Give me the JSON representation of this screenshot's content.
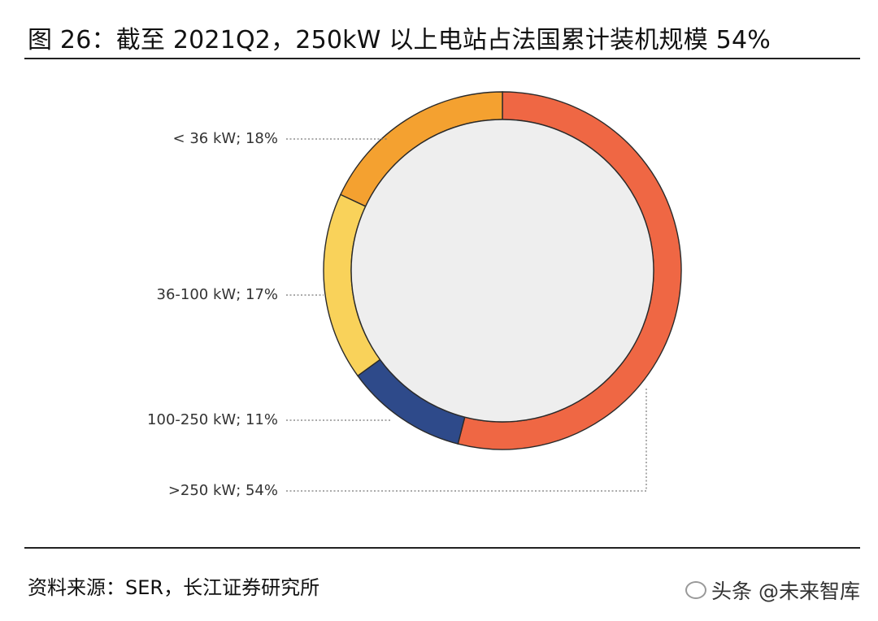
{
  "title": "图 26：截至 2021Q2，250kW 以上电站占法国累计装机规模 54%",
  "source": "资料来源：SER，长江证券研究所",
  "watermark": "头条 @未来智库",
  "chart_data": {
    "type": "pie",
    "donut": true,
    "slices": [
      {
        "label": "< 36 kW; 18%",
        "value": 18,
        "color": "#F4A130"
      },
      {
        "label": "36-100 kW; 17%",
        "value": 17,
        "color": "#F9D25A"
      },
      {
        "label": "100-250 kW; 11%",
        "value": 11,
        "color": "#2E4A8A"
      },
      {
        "label": ">250 kW; 54%",
        "value": 54,
        "color": "#EF6744"
      }
    ],
    "center_color": "#EEEEEE",
    "legend": "leader-lines-left"
  }
}
